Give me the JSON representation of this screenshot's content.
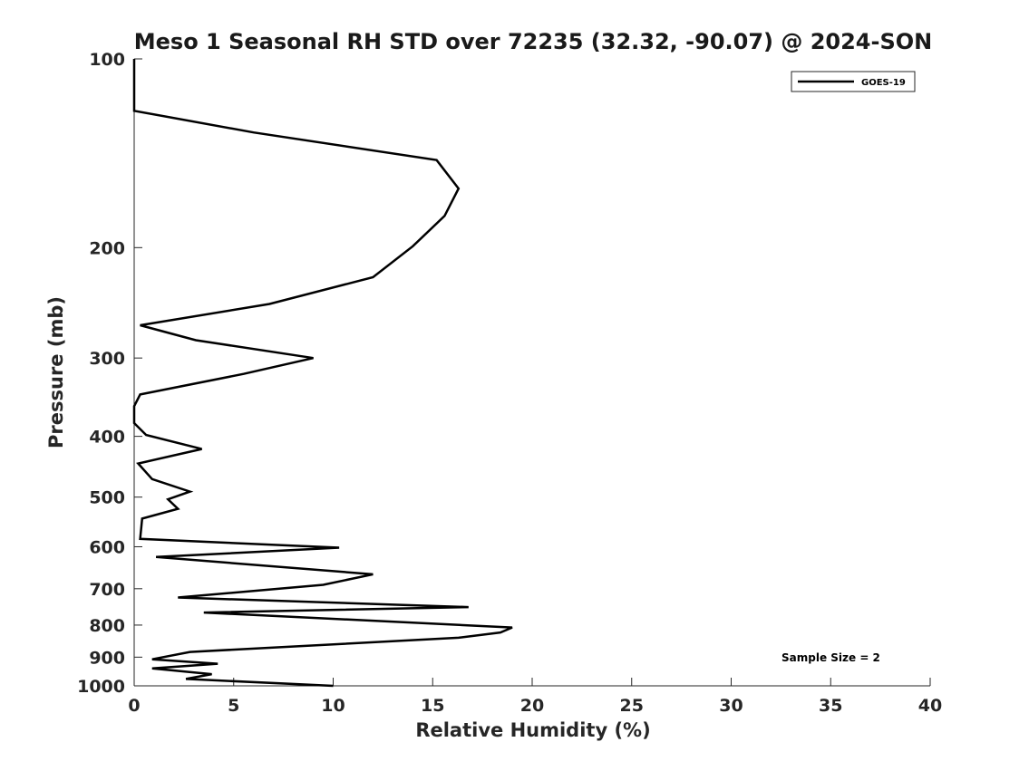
{
  "chart_data": {
    "type": "line",
    "title": "Meso 1 Seasonal RH STD over 72235 (32.32, -90.07) @ 2024-SON",
    "xlabel": "Relative Humidity (%)",
    "ylabel": "Pressure (mb)",
    "xlim": [
      0,
      40
    ],
    "ylim": [
      100,
      1000
    ],
    "y_scale": "log",
    "y_reversed": true,
    "x_ticks": [
      0,
      5,
      10,
      15,
      20,
      25,
      30,
      35,
      40
    ],
    "x_tick_labels": [
      "0",
      "5",
      "10",
      "15",
      "20",
      "25",
      "30",
      "35",
      "40"
    ],
    "y_ticks": [
      100,
      200,
      300,
      400,
      500,
      600,
      700,
      800,
      900,
      1000
    ],
    "y_tick_labels": [
      "100",
      "200",
      "300",
      "400",
      "500",
      "600",
      "700",
      "800",
      "900",
      "1000"
    ],
    "grid": false,
    "legend_position": "top-right",
    "annotation": "Sample Size = 2",
    "series": [
      {
        "name": "GOES-19",
        "color": "#000000",
        "points": [
          [
            0,
            100
          ],
          [
            0,
            103
          ],
          [
            0,
            106
          ],
          [
            0,
            110
          ],
          [
            0,
            113
          ],
          [
            0,
            118
          ],
          [
            0,
            121
          ],
          [
            6,
            131
          ],
          [
            15.2,
            145
          ],
          [
            16.3,
            161
          ],
          [
            15.6,
            178
          ],
          [
            14,
            199
          ],
          [
            12,
            223
          ],
          [
            6.8,
            246
          ],
          [
            0.3,
            266
          ],
          [
            3.1,
            281
          ],
          [
            9,
            300
          ],
          [
            5.5,
            318
          ],
          [
            0.3,
            343
          ],
          [
            0,
            358
          ],
          [
            0,
            381
          ],
          [
            0.6,
            398
          ],
          [
            3.4,
            419
          ],
          [
            0.2,
            442
          ],
          [
            0.9,
            468
          ],
          [
            2.8,
            490
          ],
          [
            1.7,
            504
          ],
          [
            2.2,
            522
          ],
          [
            0.4,
            541
          ],
          [
            0.3,
            583
          ],
          [
            10.3,
            602
          ],
          [
            1.1,
            623
          ],
          [
            12,
            664
          ],
          [
            9.5,
            690
          ],
          [
            2.2,
            723
          ],
          [
            16.8,
            749
          ],
          [
            3.5,
            764
          ],
          [
            19,
            807
          ],
          [
            18.4,
            822
          ],
          [
            16.3,
            838
          ],
          [
            2.8,
            883
          ],
          [
            0.9,
            907
          ],
          [
            4.2,
            922
          ],
          [
            0.9,
            938
          ],
          [
            3.9,
            958
          ],
          [
            2.6,
            975
          ],
          [
            10,
            1000
          ]
        ]
      }
    ]
  }
}
